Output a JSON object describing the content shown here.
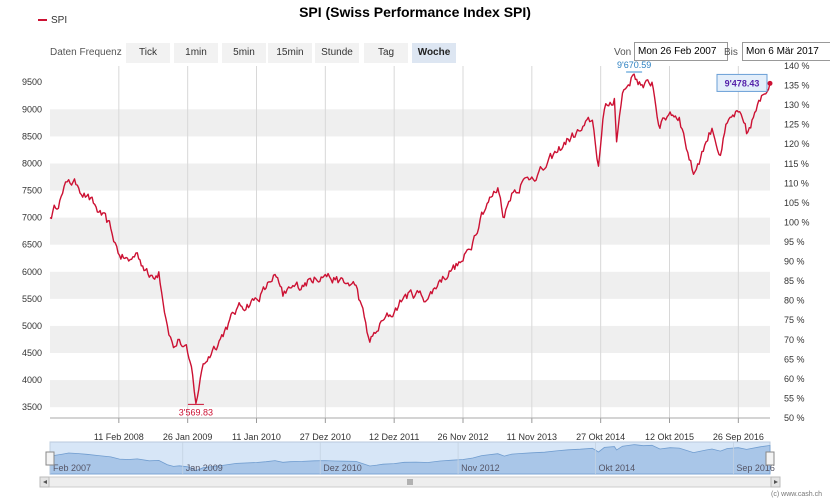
{
  "legend": {
    "series_name": "SPI",
    "color": "#cc1133"
  },
  "title": "SPI (Swiss Performance Index SPI)",
  "controls": {
    "freq_label": "Daten Frequenz",
    "buttons": [
      "Tick",
      "1min",
      "5min",
      "15min",
      "Stunde",
      "Tag",
      "Woche"
    ],
    "active": "Woche",
    "from_label": "Von",
    "from_value": "Mon 26 Feb 2007",
    "to_label": "Bis",
    "to_value": "Mon 6 Mär 2017"
  },
  "credit": "(c) www.cash.ch",
  "chart_data": {
    "type": "line",
    "title": "SPI (Swiss Performance Index SPI)",
    "series": [
      {
        "name": "SPI",
        "color": "#cc1133",
        "x": [
          "2007-02-26",
          "2007-05-01",
          "2007-06-01",
          "2007-07-15",
          "2007-09-01",
          "2007-11-01",
          "2008-01-01",
          "2008-02-15",
          "2008-04-01",
          "2008-05-15",
          "2008-07-15",
          "2008-09-01",
          "2008-10-15",
          "2008-11-15",
          "2008-12-15",
          "2009-01-26",
          "2009-02-20",
          "2009-03-09",
          "2009-04-15",
          "2009-06-01",
          "2009-08-01",
          "2009-10-01",
          "2010-01-11",
          "2010-03-01",
          "2010-04-15",
          "2010-05-25",
          "2010-07-01",
          "2010-09-01",
          "2010-11-01",
          "2010-12-27",
          "2011-02-15",
          "2011-04-01",
          "2011-06-01",
          "2011-08-10",
          "2011-09-15",
          "2011-10-15",
          "2011-12-12",
          "2012-02-01",
          "2012-04-01",
          "2012-06-01",
          "2012-08-01",
          "2012-10-01",
          "2012-11-26",
          "2013-01-15",
          "2013-03-01",
          "2013-05-22",
          "2013-06-24",
          "2013-08-01",
          "2013-09-15",
          "2013-11-11",
          "2014-01-15",
          "2014-03-15",
          "2014-05-15",
          "2014-07-15",
          "2014-09-15",
          "2014-10-16",
          "2014-11-15",
          "2015-01-05",
          "2015-01-16",
          "2015-02-15",
          "2015-04-15",
          "2015-06-01",
          "2015-07-15",
          "2015-08-24",
          "2015-10-15",
          "2015-12-01",
          "2016-02-11",
          "2016-04-15",
          "2016-05-15",
          "2016-06-27",
          "2016-08-01",
          "2016-09-26",
          "2016-11-07",
          "2017-01-15",
          "2017-03-06"
        ],
        "y": [
          7000,
          7450,
          7700,
          7600,
          7400,
          7100,
          6800,
          6300,
          6200,
          6350,
          5900,
          6000,
          5000,
          4600,
          4750,
          4500,
          4100,
          3570,
          4300,
          4550,
          4900,
          5300,
          5500,
          5700,
          5950,
          5550,
          5700,
          5750,
          5900,
          5950,
          5850,
          5800,
          5750,
          4700,
          4900,
          5100,
          5250,
          5550,
          5600,
          5500,
          5850,
          6050,
          6200,
          6550,
          7100,
          7550,
          7000,
          7450,
          7600,
          7750,
          7900,
          8200,
          8450,
          8600,
          8800,
          7950,
          9000,
          9200,
          8400,
          9300,
          9650,
          9400,
          9500,
          8650,
          8950,
          8850,
          7800,
          8400,
          8650,
          8150,
          8750,
          8950,
          8550,
          9150,
          9478.43
        ]
      }
    ],
    "xlim": [
      "2007-02-26",
      "2017-03-06"
    ],
    "x_ticks": [
      "2008-02-11",
      "2009-01-26",
      "2010-01-11",
      "2010-12-27",
      "2011-12-12",
      "2012-11-26",
      "2013-11-11",
      "2014-10-27",
      "2015-10-12",
      "2016-09-26"
    ],
    "x_tick_labels": [
      "11 Feb 2008",
      "26 Jan 2009",
      "11 Jan 2010",
      "27 Dez 2010",
      "12 Dez 2011",
      "26 Nov 2012",
      "11 Nov 2013",
      "27 Okt 2014",
      "12 Okt 2015",
      "26 Sep 2016"
    ],
    "y_ticks": [
      3500,
      4000,
      4500,
      5000,
      5500,
      6000,
      6500,
      7000,
      7500,
      8000,
      8500,
      9000,
      9500
    ],
    "ylim": [
      3300,
      9800
    ],
    "y2_ticks": [
      "50 %",
      "55 %",
      "60 %",
      "65 %",
      "70 %",
      "75 %",
      "80 %",
      "85 %",
      "90 %",
      "95 %",
      "100 %",
      "105 %",
      "110 %",
      "115 %",
      "120 %",
      "125 %",
      "130 %",
      "135 %",
      "140 %"
    ],
    "y2lim": [
      50,
      140
    ],
    "grid": "horizontal bands and vertical lines",
    "annotations": {
      "max_label": "9'670.59",
      "max_x": "2015-04-15",
      "max_y": 9670.59,
      "min_label": "3'569.83",
      "min_x": "2009-03-09",
      "min_y": 3569.83,
      "last_label": "9'478.43",
      "last_y": 9478.43
    },
    "navigator_labels": [
      {
        "text": "Feb 2007",
        "x": "2007-02-26"
      },
      {
        "text": "Jan 2009",
        "x": "2009-01-01"
      },
      {
        "text": "Dez 2010",
        "x": "2010-12-01"
      },
      {
        "text": "Nov 2012",
        "x": "2012-11-01"
      },
      {
        "text": "Okt 2014",
        "x": "2014-10-01"
      },
      {
        "text": "Sep 2016",
        "x": "2016-09-01"
      }
    ]
  }
}
